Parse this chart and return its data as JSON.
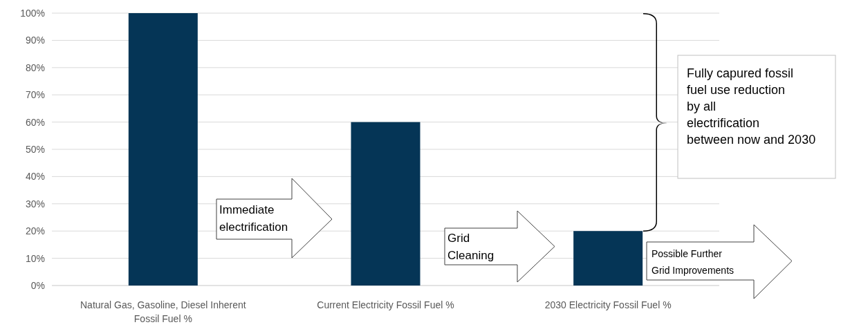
{
  "chart_data": {
    "type": "bar",
    "categories": [
      "Natural Gas, Gasoline, Diesel Inherent Fossil Fuel %",
      "Current Electricity Fossil Fuel %",
      "2030 Electricity Fossil Fuel %"
    ],
    "values": [
      100,
      60,
      20
    ],
    "color": "#053556",
    "ylim": [
      0,
      100
    ],
    "yticks": [
      {
        "value": 0,
        "label": "0%"
      },
      {
        "value": 10,
        "label": "10%"
      },
      {
        "value": 20,
        "label": "20%"
      },
      {
        "value": 30,
        "label": "30%"
      },
      {
        "value": 40,
        "label": "40%"
      },
      {
        "value": 50,
        "label": "50%"
      },
      {
        "value": 60,
        "label": "60%"
      },
      {
        "value": 70,
        "label": "70%"
      },
      {
        "value": 80,
        "label": "80%"
      },
      {
        "value": 90,
        "label": "90%"
      },
      {
        "value": 100,
        "label": "100%"
      }
    ],
    "grid": "y",
    "annotations": [
      "Immediate electrification",
      "Grid Cleaning",
      "Possible Further Grid Improvements",
      "Fully capured fossil fuel use reduction by all electrification between now and 2030"
    ]
  }
}
